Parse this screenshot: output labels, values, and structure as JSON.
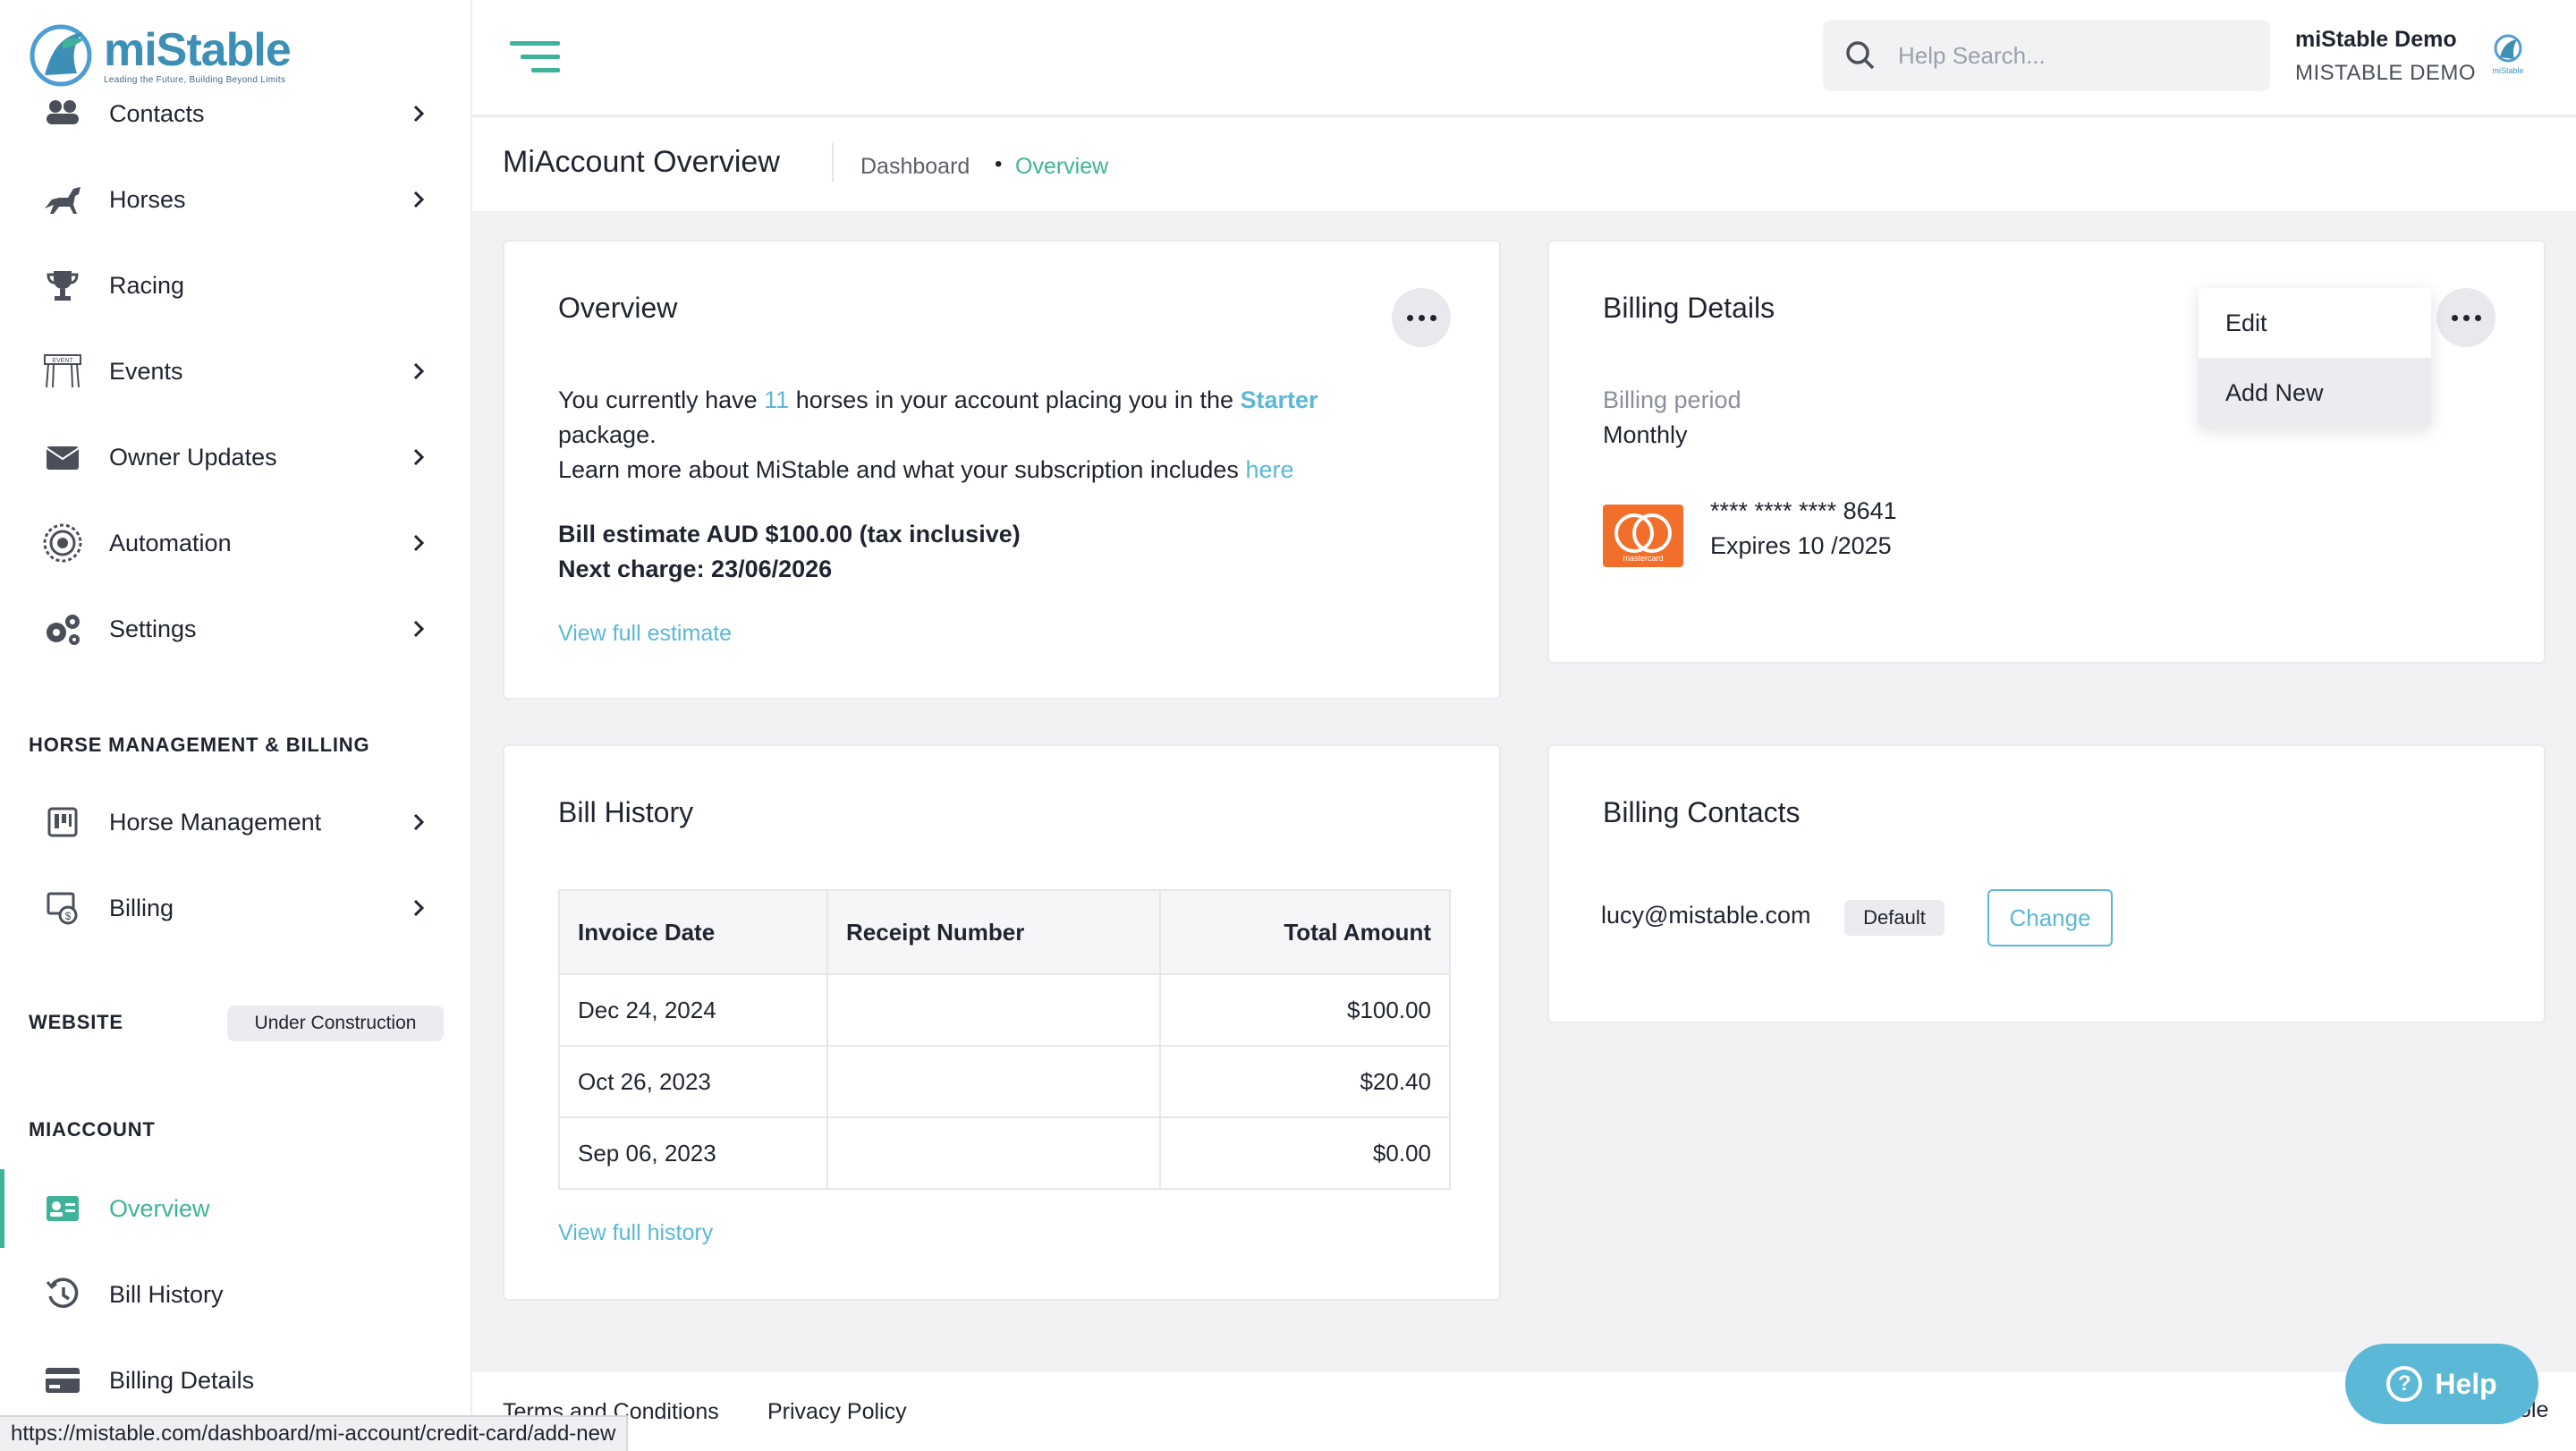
{
  "app": {
    "logo_name": "miStable",
    "logo_tagline": "Leading the Future, Building Beyond Limits"
  },
  "sidebar": {
    "items": [
      {
        "label": "Contacts",
        "icon": "contacts-icon"
      },
      {
        "label": "Horses",
        "icon": "horse-icon"
      },
      {
        "label": "Racing",
        "icon": "trophy-icon"
      },
      {
        "label": "Events",
        "icon": "events-icon"
      },
      {
        "label": "Owner Updates",
        "icon": "envelope-icon"
      },
      {
        "label": "Automation",
        "icon": "automation-icon"
      },
      {
        "label": "Settings",
        "icon": "gears-icon"
      }
    ],
    "section_hm": "HORSE MANAGEMENT & BILLING",
    "hm_items": [
      {
        "label": "Horse Management",
        "icon": "horse-management-icon"
      },
      {
        "label": "Billing",
        "icon": "billing-icon"
      }
    ],
    "section_website": "WEBSITE",
    "website_badge": "Under Construction",
    "section_miaccount": "MIACCOUNT",
    "miaccount_items": [
      {
        "label": "Overview",
        "icon": "id-card-icon"
      },
      {
        "label": "Bill History",
        "icon": "history-icon"
      },
      {
        "label": "Billing Details",
        "icon": "credit-card-icon"
      }
    ]
  },
  "topbar": {
    "search_placeholder": "Help Search...",
    "user_name": "miStable Demo",
    "user_org": "MISTABLE DEMO",
    "avatar_text": "miStable"
  },
  "page": {
    "title": "MiAccount Overview",
    "breadcrumb": [
      "Dashboard",
      "Overview"
    ]
  },
  "overview": {
    "title": "Overview",
    "line1_a": "You currently have ",
    "horse_count": "11",
    "line1_b": " horses in your account placing you in the ",
    "plan": "Starter",
    "line2": "package.",
    "line3_a": "Learn more about MiStable and what your subscription includes ",
    "line3_link": "here",
    "estimate": "Bill estimate AUD $100.00 (tax inclusive)",
    "next_charge": "Next charge: 23/06/2026",
    "view_estimate": "View full estimate"
  },
  "billing_details": {
    "title": "Billing Details",
    "period_label": "Billing period",
    "period_value": "Monthly",
    "card_number": "**** **** **** 8641",
    "card_expiry": "Expires 10 /2025",
    "card_brand": "mastercard",
    "menu_items": [
      "Edit",
      "Add New"
    ]
  },
  "bill_history": {
    "title": "Bill History",
    "columns": [
      "Invoice Date",
      "Receipt Number",
      "Total Amount"
    ],
    "rows": [
      {
        "date": "Dec 24, 2024",
        "receipt": "",
        "amount": "$100.00"
      },
      {
        "date": "Oct 26, 2023",
        "receipt": "",
        "amount": "$20.40"
      },
      {
        "date": "Sep 06, 2023",
        "receipt": "",
        "amount": "$0.00"
      }
    ],
    "view_history": "View full history"
  },
  "billing_contacts": {
    "title": "Billing Contacts",
    "email": "lucy@mistable.com",
    "badge": "Default",
    "change_label": "Change"
  },
  "footer": {
    "terms": "Terms and Conditions",
    "privacy": "Privacy Policy",
    "right_fragment": "ole",
    "help_label": "Help"
  },
  "status_bar": {
    "url": "https://mistable.com/dashboard/mi-account/credit-card/add-new"
  },
  "colors": {
    "accent": "#3fb39a",
    "link": "#5bb8d6",
    "mastercard": "#f26f2b"
  }
}
